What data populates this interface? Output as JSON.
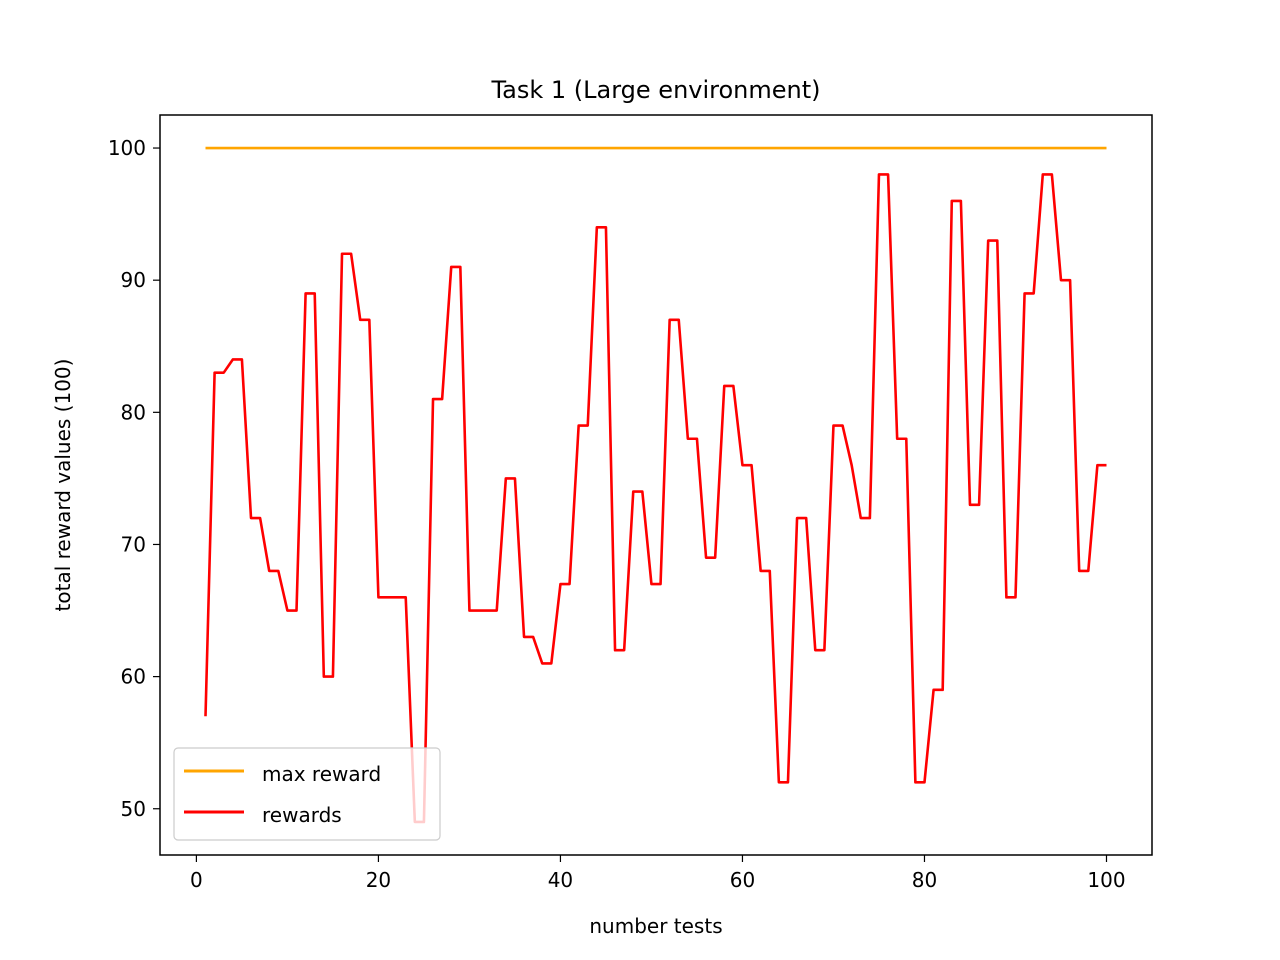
{
  "chart_data": {
    "type": "line",
    "title": "Task 1 (Large environment)",
    "xlabel": "number tests",
    "ylabel": "total reward values (100)",
    "xlim": [
      -4,
      105
    ],
    "ylim": [
      46.5,
      102.5
    ],
    "x_ticks": [
      0,
      20,
      40,
      60,
      80,
      100
    ],
    "y_ticks": [
      50,
      60,
      70,
      80,
      90,
      100
    ],
    "grid": false,
    "legend_position": "lower-left",
    "series": [
      {
        "name": "max reward",
        "color": "#FFA500",
        "x": [
          1,
          100
        ],
        "values": [
          100,
          100
        ]
      },
      {
        "name": "rewards",
        "color": "#FF0000",
        "x": [
          1,
          2,
          3,
          4,
          5,
          6,
          7,
          8,
          9,
          10,
          11,
          12,
          13,
          14,
          15,
          16,
          17,
          18,
          19,
          20,
          21,
          22,
          23,
          24,
          25,
          26,
          27,
          28,
          29,
          30,
          31,
          32,
          33,
          34,
          35,
          36,
          37,
          38,
          39,
          40,
          41,
          42,
          43,
          44,
          45,
          46,
          47,
          48,
          49,
          50,
          51,
          52,
          53,
          54,
          55,
          56,
          57,
          58,
          59,
          60,
          61,
          62,
          63,
          64,
          65,
          66,
          67,
          68,
          69,
          70,
          71,
          72,
          73,
          74,
          75,
          76,
          77,
          78,
          79,
          80,
          81,
          82,
          83,
          84,
          85,
          86,
          87,
          88,
          89,
          90,
          91,
          92,
          93,
          94,
          95,
          96,
          97,
          98,
          99,
          100
        ],
        "values": [
          57,
          83,
          83,
          84,
          84,
          72,
          72,
          68,
          68,
          65,
          65,
          89,
          89,
          60,
          60,
          92,
          92,
          87,
          87,
          66,
          66,
          66,
          66,
          49,
          49,
          81,
          81,
          91,
          91,
          65,
          65,
          65,
          65,
          75,
          75,
          63,
          63,
          61,
          61,
          67,
          67,
          79,
          79,
          94,
          94,
          62,
          62,
          74,
          74,
          67,
          67,
          87,
          87,
          78,
          78,
          69,
          69,
          82,
          82,
          76,
          76,
          68,
          68,
          52,
          52,
          72,
          72,
          62,
          62,
          79,
          79,
          76,
          72,
          72,
          98,
          98,
          78,
          78,
          52,
          52,
          59,
          59,
          96,
          96,
          73,
          73,
          93,
          93,
          66,
          66,
          89,
          89,
          98,
          98,
          90,
          90,
          68,
          68,
          76,
          76
        ]
      }
    ]
  }
}
